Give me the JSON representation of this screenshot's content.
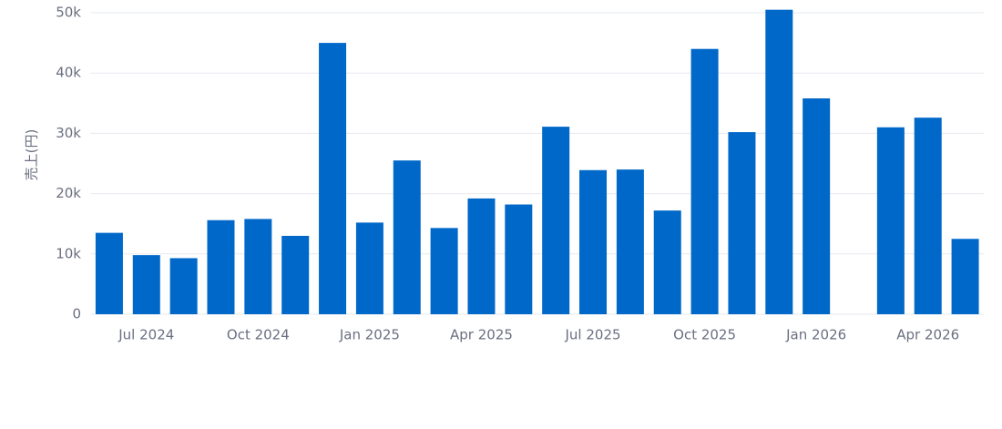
{
  "chart_data": {
    "type": "bar",
    "y_label": "売上(円)",
    "categories": [
      null,
      "Jul 2024",
      null,
      null,
      "Oct 2024",
      null,
      null,
      "Jan 2025",
      null,
      null,
      "Apr 2025",
      null,
      null,
      "Jul 2025",
      null,
      null,
      "Oct 2025",
      null,
      null,
      "Jan 2026",
      null,
      null,
      "Apr 2026",
      null
    ],
    "values": [
      13500,
      9800,
      9300,
      15600,
      15800,
      13000,
      45000,
      15200,
      25500,
      14300,
      19200,
      18200,
      31100,
      23900,
      24000,
      17200,
      44000,
      30200,
      50500,
      35800,
      null,
      31000,
      32600,
      12500
    ],
    "color": "#0068c9",
    "ylim": [
      0,
      50000
    ],
    "yticks": [
      0,
      {
        "value": 10000,
        "label": "10k"
      },
      {
        "value": 20000,
        "label": "20k"
      },
      {
        "value": 30000,
        "label": "30k"
      },
      {
        "value": 40000,
        "label": "40k"
      },
      {
        "value": 50000,
        "label": "50k"
      }
    ],
    "grid": true
  }
}
